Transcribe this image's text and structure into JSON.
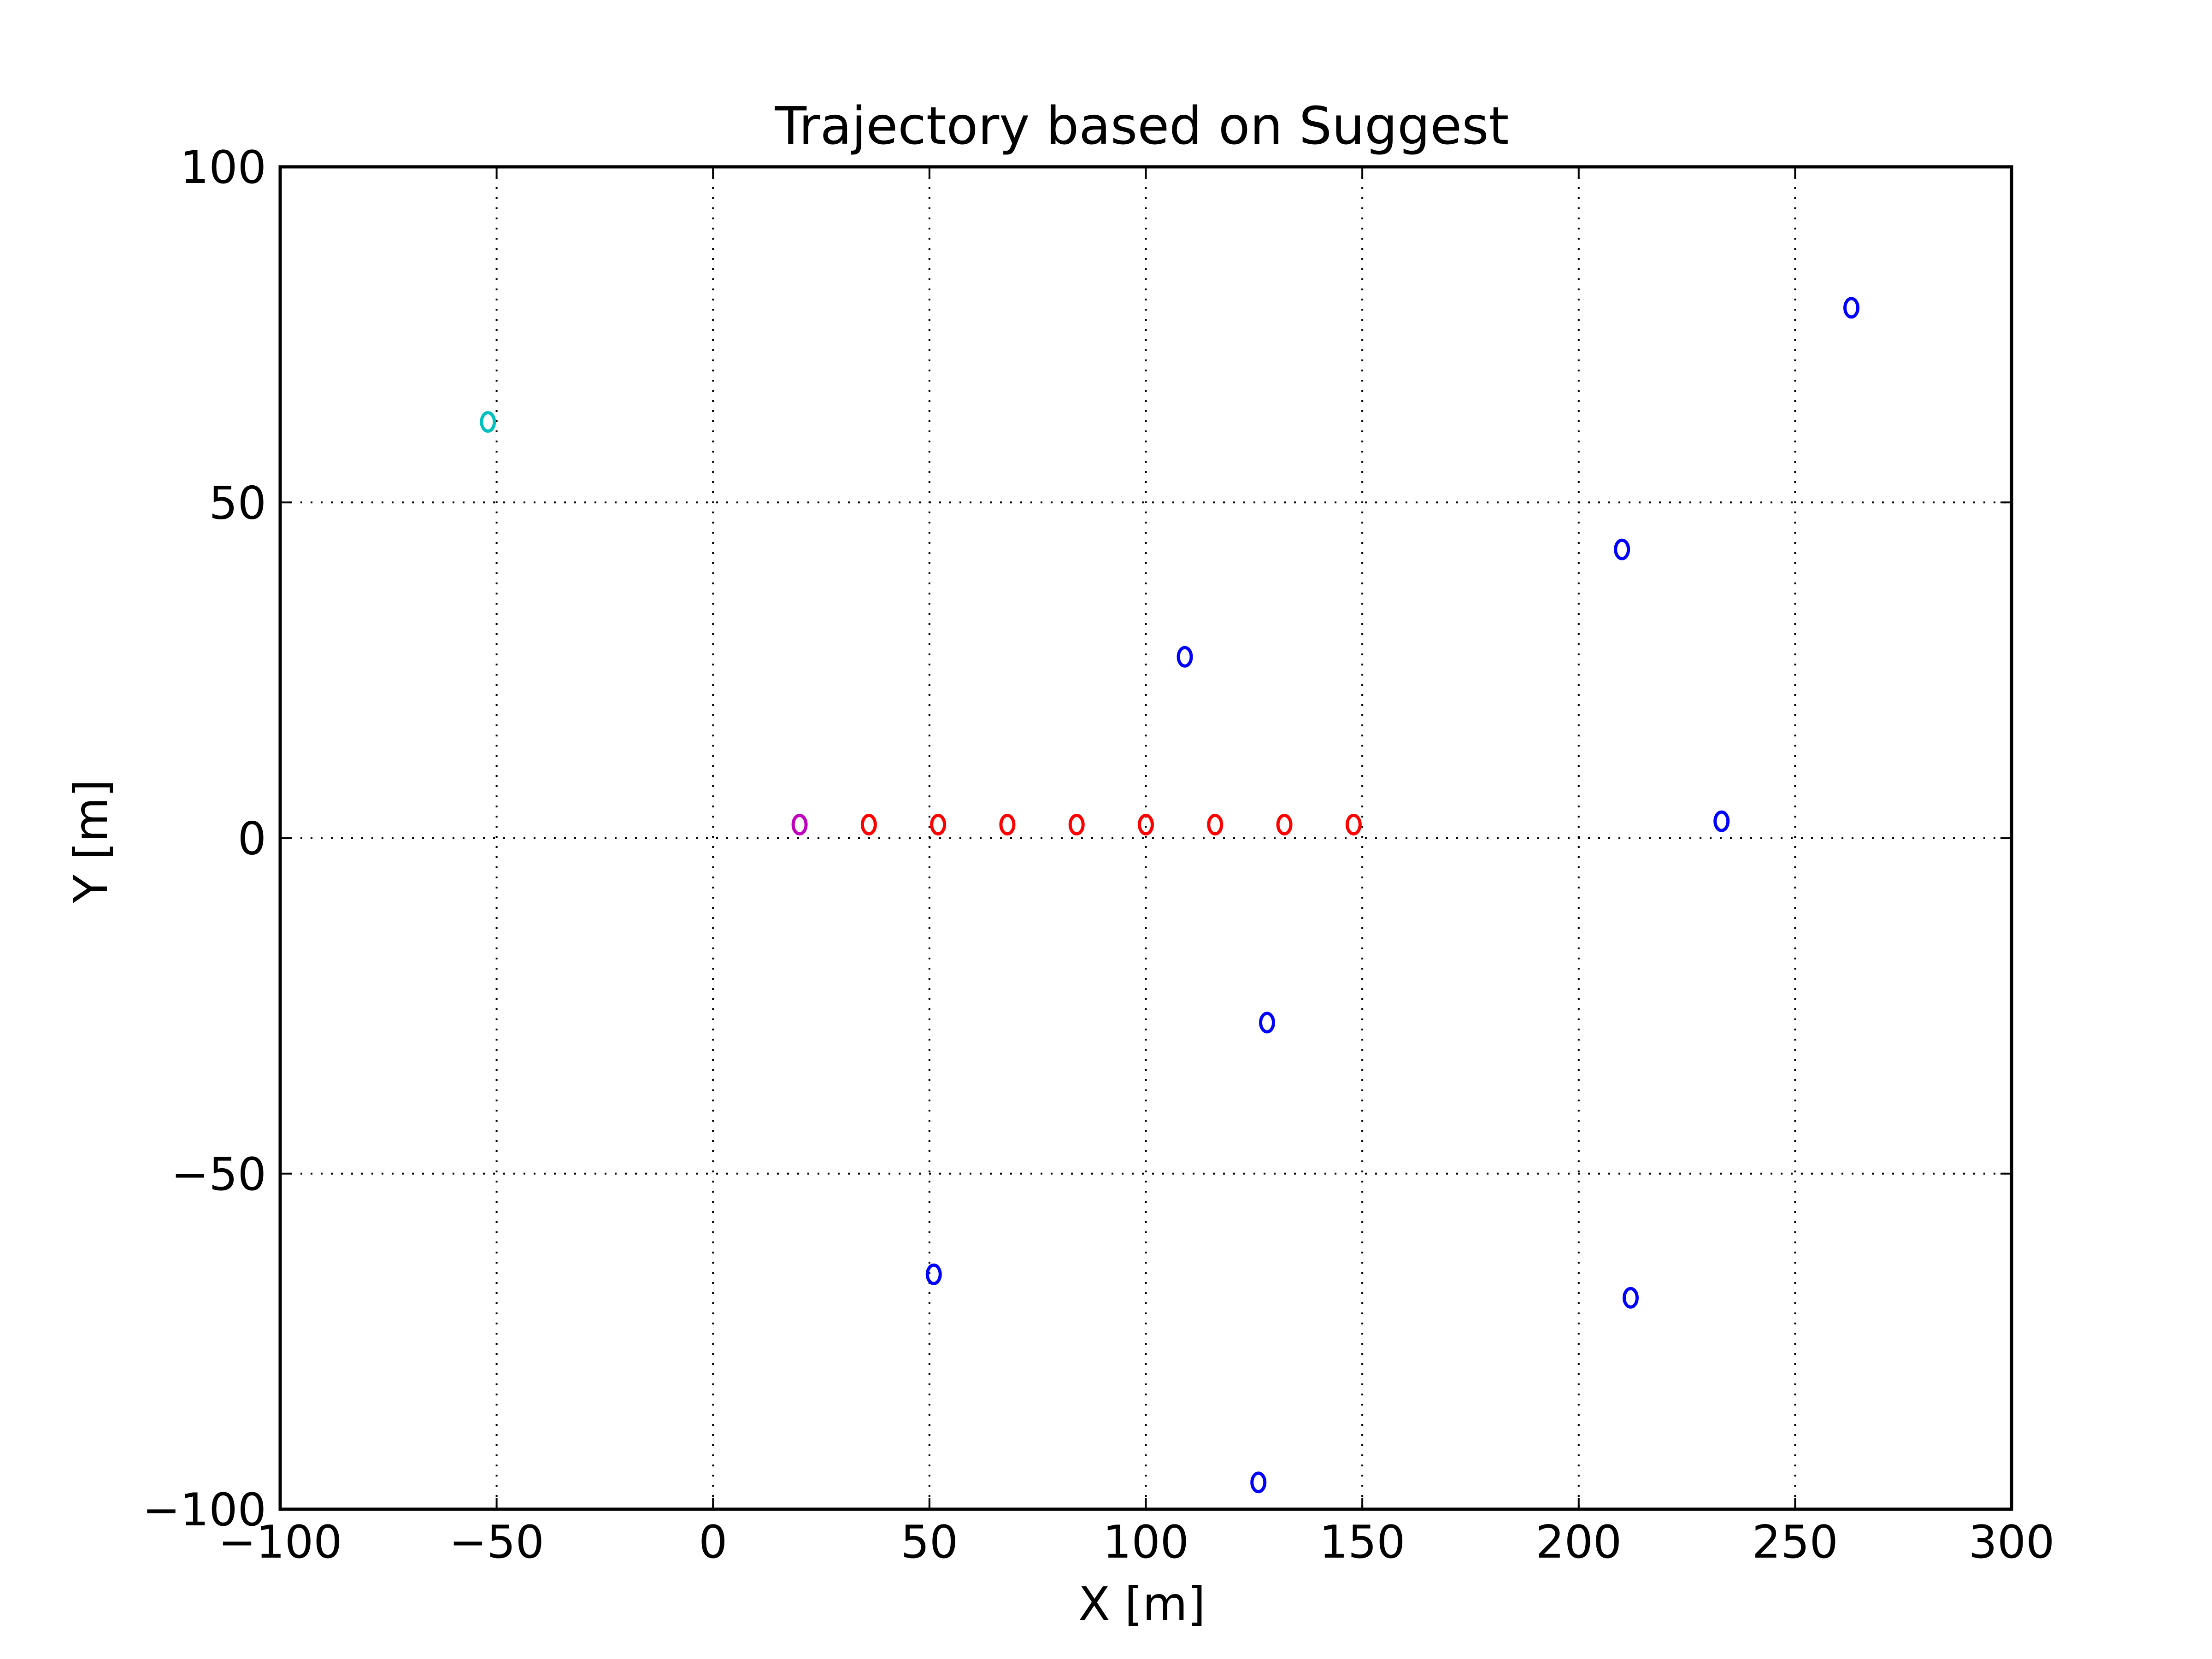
{
  "chart_data": {
    "type": "scatter",
    "title": "Trajectory based on Suggest",
    "xlabel": "X [m]",
    "ylabel": "Y [m]",
    "xlim": [
      -100,
      300
    ],
    "ylim": [
      -100,
      100
    ],
    "xticks": [
      -100,
      -50,
      0,
      50,
      100,
      150,
      200,
      250,
      300
    ],
    "yticks": [
      -100,
      -50,
      0,
      50,
      100
    ],
    "xtick_labels": [
      "−100",
      "−50",
      "0",
      "50",
      "100",
      "150",
      "200",
      "250",
      "300"
    ],
    "ytick_labels": [
      "−100",
      "−50",
      "0",
      "50",
      "100"
    ],
    "grid": true,
    "marker": "o",
    "series": [
      {
        "color": "#bf00bf",
        "points": [
          [
            20,
            2
          ]
        ]
      },
      {
        "color": "#ff0000",
        "points": [
          [
            36,
            2
          ],
          [
            52,
            2
          ],
          [
            68,
            2
          ],
          [
            84,
            2
          ],
          [
            100,
            2
          ],
          [
            116,
            2
          ],
          [
            132,
            2
          ],
          [
            148,
            2
          ]
        ]
      },
      {
        "color": "#00bfbf",
        "points": [
          [
            -52,
            62
          ]
        ]
      },
      {
        "color": "#0000ff",
        "points": [
          [
            263,
            79
          ],
          [
            210,
            43
          ],
          [
            109,
            27
          ],
          [
            233,
            2.5
          ],
          [
            128,
            -27.5
          ],
          [
            51,
            -65
          ],
          [
            212,
            -68.5
          ],
          [
            126,
            -96
          ]
        ]
      }
    ]
  }
}
